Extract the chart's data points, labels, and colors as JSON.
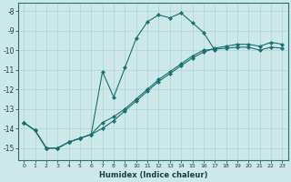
{
  "xlabel": "Humidex (Indice chaleur)",
  "bg_color": "#cce8e8",
  "line_color": "#1a7070",
  "xlim": [
    -0.5,
    23.5
  ],
  "ylim": [
    -15.6,
    -7.6
  ],
  "xticks": [
    0,
    1,
    2,
    3,
    4,
    5,
    6,
    7,
    8,
    9,
    10,
    11,
    12,
    13,
    14,
    15,
    16,
    17,
    18,
    19,
    20,
    21,
    22,
    23
  ],
  "yticks": [
    -15,
    -14,
    -13,
    -12,
    -11,
    -10,
    -9,
    -8
  ],
  "grid_color": "#aad4d4",
  "lines": [
    {
      "x": [
        0,
        1,
        2,
        3,
        4,
        5,
        6,
        7,
        8,
        9,
        10,
        11,
        12,
        13,
        14,
        15,
        16,
        17
      ],
      "y": [
        -13.7,
        -14.1,
        -15.0,
        -15.0,
        -14.7,
        -14.5,
        -14.3,
        -11.1,
        -12.4,
        -10.9,
        -9.4,
        -8.55,
        -8.2,
        -8.35,
        -8.1,
        -8.6,
        -9.1,
        -10.0
      ]
    },
    {
      "x": [
        0,
        1,
        2,
        3,
        4,
        5,
        6,
        7,
        8,
        9,
        10,
        11,
        12,
        13,
        14,
        15,
        16,
        17,
        18,
        19,
        20,
        21,
        22,
        23
      ],
      "y": [
        -13.7,
        -14.1,
        -15.0,
        -15.0,
        -14.7,
        -14.5,
        -14.3,
        -14.0,
        -13.6,
        -13.1,
        -12.6,
        -12.1,
        -11.6,
        -11.2,
        -10.8,
        -10.4,
        -10.1,
        -9.9,
        -9.8,
        -9.7,
        -9.7,
        -9.8,
        -9.6,
        -9.7
      ]
    },
    {
      "x": [
        0,
        1,
        2,
        3,
        4,
        5,
        6,
        7,
        8,
        9,
        10,
        11,
        12,
        13,
        14,
        15,
        16,
        17,
        18,
        19,
        20,
        21,
        22,
        23
      ],
      "y": [
        -13.7,
        -14.1,
        -15.0,
        -15.0,
        -14.7,
        -14.5,
        -14.3,
        -13.7,
        -13.4,
        -13.0,
        -12.5,
        -12.0,
        -11.5,
        -11.1,
        -10.7,
        -10.3,
        -10.0,
        -9.95,
        -9.9,
        -9.85,
        -9.85,
        -10.0,
        -9.85,
        -9.9
      ]
    }
  ]
}
